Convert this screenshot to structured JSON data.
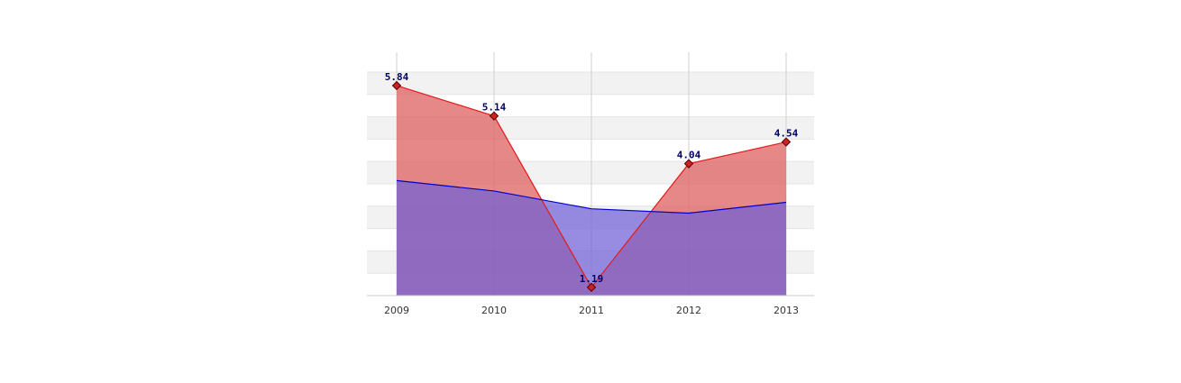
{
  "chart_data": {
    "type": "area",
    "categories": [
      "2009",
      "2010",
      "2011",
      "2012",
      "2013"
    ],
    "series": [
      {
        "values": [
          5.84,
          5.14,
          1.19,
          4.04,
          4.54
        ],
        "labels": [
          "5.84",
          "5.14",
          "1.19",
          "4.04",
          "4.54"
        ],
        "color": "#e31a1c",
        "fill": "#e06666",
        "markers": true,
        "data_labels": true
      },
      {
        "values": [
          3.65,
          3.41,
          3.0,
          2.9,
          3.15
        ],
        "color": "#0000cc",
        "fill": "#6f5fd6",
        "markers": false,
        "data_labels": false
      }
    ],
    "ylim": [
      1.0,
      6.4
    ],
    "grid": {
      "horizontal_bands": true,
      "vertical_lines": true
    },
    "legend": "none",
    "data_label_color": "#000066",
    "title": "",
    "xlabel": "",
    "ylabel": ""
  }
}
